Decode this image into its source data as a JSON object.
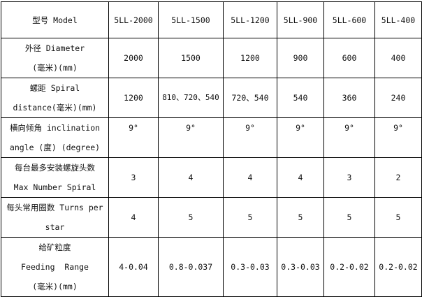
{
  "header": {
    "label": "型号 Model",
    "models": [
      "5LL-2000",
      "5LL-1500",
      "5LL-1200",
      "5LL-900",
      "5LL-600",
      "5LL-400"
    ]
  },
  "rows": [
    {
      "label_lines": [
        "外径 Diameter",
        "(毫米)(mm)"
      ],
      "values": [
        "2000",
        "1500",
        "1200",
        "900",
        "600",
        "400"
      ]
    },
    {
      "label_lines": [
        "螺距 Spiral",
        "distance(毫米)(mm)"
      ],
      "values": [
        "1200",
        "810、720、540",
        "720、540",
        "540",
        "360",
        "240"
      ]
    },
    {
      "label_lines": [
        "横向倾角 inclination",
        "angle (度) (degree)"
      ],
      "values": [
        "9°",
        "9°",
        "9°",
        "9°",
        "9°",
        "9°"
      ]
    },
    {
      "label_lines": [
        "每台最多安装螺旋头数",
        "Max Number Spiral"
      ],
      "values": [
        "3",
        "4",
        "4",
        "4",
        "3",
        "2"
      ]
    },
    {
      "label_lines": [
        "每头常用圈数 Turns per",
        "star"
      ],
      "values": [
        "4",
        "5",
        "5",
        "5",
        "5",
        "5"
      ]
    },
    {
      "label_lines": [
        "给矿粒度",
        "Feeding  Range",
        "(毫米)(mm)"
      ],
      "values": [
        "4-0.04",
        "0.8-0.037",
        "0.3-0.03",
        "0.3-0.03",
        "0.2-0.02",
        "0.2-0.02"
      ]
    }
  ]
}
